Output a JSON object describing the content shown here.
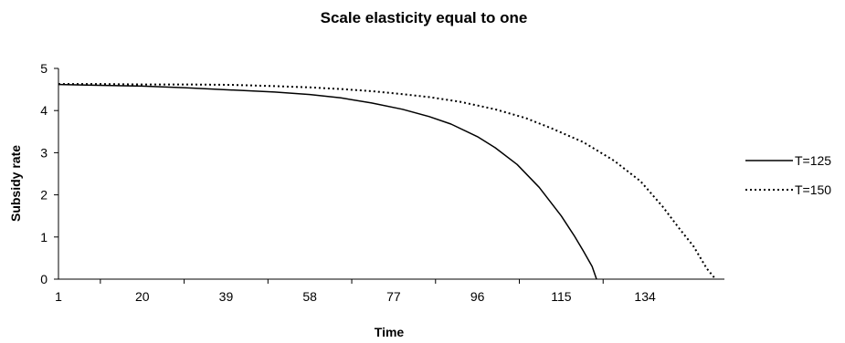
{
  "chart_data": {
    "type": "line",
    "title": "Scale elasticity equal to one",
    "xlabel": "Time",
    "ylabel": "Subsidy rate",
    "x_tick_labels": [
      "1",
      "20",
      "39",
      "58",
      "77",
      "96",
      "115",
      "134"
    ],
    "y_tick_labels": [
      "0",
      "1",
      "2",
      "3",
      "4",
      "5"
    ],
    "xlim": [
      1,
      152
    ],
    "ylim": [
      0,
      5
    ],
    "grid": false,
    "legend_position": "right",
    "series": [
      {
        "name": "T=125",
        "style": "solid",
        "color": "#000000",
        "points": [
          [
            1,
            4.62
          ],
          [
            10,
            4.6
          ],
          [
            20,
            4.58
          ],
          [
            30,
            4.54
          ],
          [
            40,
            4.49
          ],
          [
            50,
            4.44
          ],
          [
            58,
            4.38
          ],
          [
            65,
            4.3
          ],
          [
            72,
            4.18
          ],
          [
            79,
            4.03
          ],
          [
            85,
            3.86
          ],
          [
            90,
            3.68
          ],
          [
            96,
            3.38
          ],
          [
            100,
            3.12
          ],
          [
            105,
            2.72
          ],
          [
            110,
            2.18
          ],
          [
            115,
            1.5
          ],
          [
            118,
            1.02
          ],
          [
            120,
            0.67
          ],
          [
            122,
            0.3
          ],
          [
            123,
            0.0
          ]
        ]
      },
      {
        "name": "T=150",
        "style": "dotted",
        "color": "#000000",
        "points": [
          [
            1,
            4.63
          ],
          [
            10,
            4.63
          ],
          [
            20,
            4.62
          ],
          [
            30,
            4.62
          ],
          [
            40,
            4.61
          ],
          [
            50,
            4.58
          ],
          [
            58,
            4.55
          ],
          [
            65,
            4.51
          ],
          [
            72,
            4.46
          ],
          [
            79,
            4.39
          ],
          [
            85,
            4.32
          ],
          [
            92,
            4.21
          ],
          [
            100,
            4.03
          ],
          [
            107,
            3.82
          ],
          [
            113,
            3.57
          ],
          [
            120,
            3.25
          ],
          [
            127,
            2.81
          ],
          [
            133,
            2.32
          ],
          [
            138,
            1.72
          ],
          [
            142,
            1.17
          ],
          [
            145,
            0.78
          ],
          [
            148,
            0.25
          ],
          [
            150,
            0.0
          ]
        ]
      }
    ]
  }
}
